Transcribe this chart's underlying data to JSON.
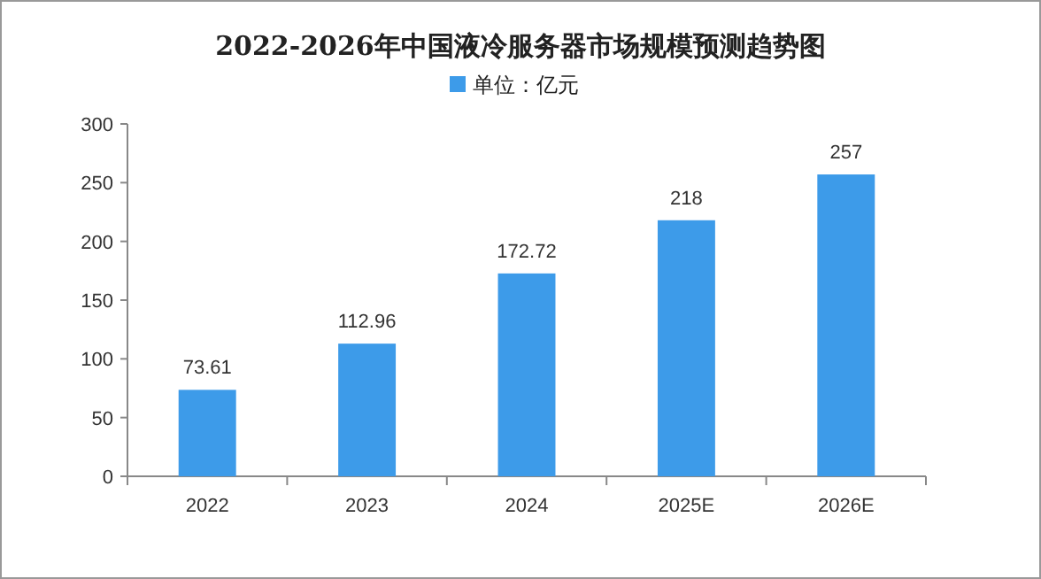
{
  "chart_data": {
    "type": "bar",
    "title": "2022-2026年中国液冷服务器市场规模预测趋势图",
    "categories": [
      "2022",
      "2023",
      "2024",
      "2025E",
      "2026E"
    ],
    "series": [
      {
        "name": "单位：亿元",
        "color": "#3d9be9",
        "values": [
          73.61,
          112.96,
          172.72,
          218,
          257
        ]
      }
    ],
    "ylim": [
      0,
      300
    ],
    "yticks": [
      0,
      50,
      100,
      150,
      200,
      250,
      300
    ],
    "grid": false,
    "legend": "top",
    "data_labels": true
  }
}
